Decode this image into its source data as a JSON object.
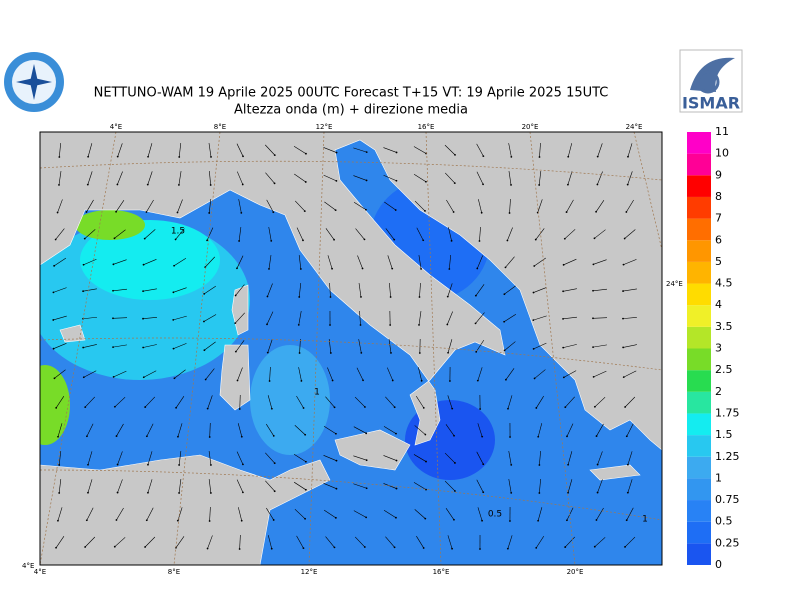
{
  "header": {
    "title": "NETTUNO-WAM  19   Aprile  2025 00UTC Forecast T+15 VT: 19   Aprile  2025 15UTC",
    "subtitle": "Altezza onda (m) + direzione media",
    "logo_text": "ISMAR"
  },
  "colorbar": {
    "labels": [
      "0",
      "0.25",
      "0.5",
      "0.75",
      "1",
      "1.25",
      "1.5",
      "1.75",
      "2",
      "2.5",
      "3",
      "3.5",
      "4",
      "4.5",
      "5",
      "6",
      "7",
      "8",
      "9",
      "10",
      "11"
    ],
    "colors": [
      "#1a55f0",
      "#1e6ef5",
      "#2882f5",
      "#3296f0",
      "#3caaf0",
      "#28c8f0",
      "#14ecf0",
      "#28e6a0",
      "#28dc50",
      "#78dc28",
      "#b4e628",
      "#f0f028",
      "#ffdc00",
      "#ffb400",
      "#ff9600",
      "#ff6e00",
      "#ff3c00",
      "#ff0000",
      "#ff0096",
      "#ff00c8"
    ]
  },
  "map": {
    "lon_labels_top": [
      "4°E",
      "8°E",
      "12°E",
      "16°E",
      "20°E",
      "24°E"
    ],
    "lon_labels_bottom": [
      "4°E",
      "8°E",
      "12°E",
      "16°E",
      "20°E"
    ],
    "lat_label_right": "24°E",
    "corner_label": "4°E",
    "contour_labels": [
      "1.5",
      "1",
      "0.5",
      "1"
    ]
  }
}
